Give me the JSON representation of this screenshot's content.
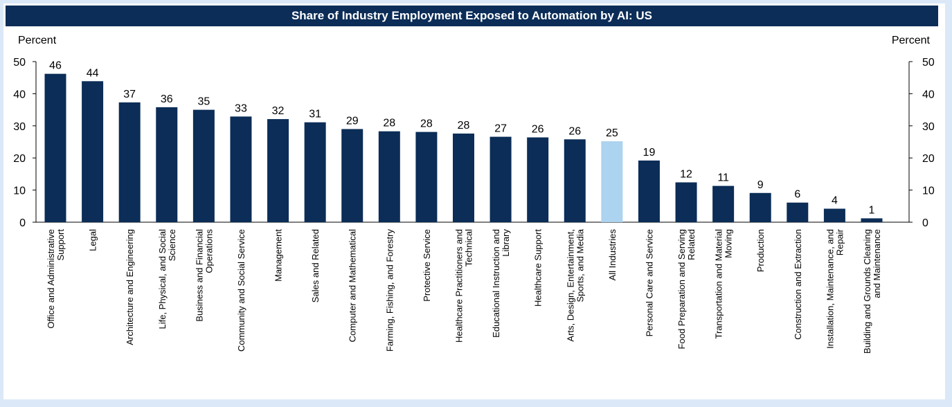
{
  "chart_data": {
    "type": "bar",
    "title": "Share of Industry Employment Exposed to Automation by AI: US",
    "ylabel_left": "Percent",
    "ylabel_right": "Percent",
    "ylim": [
      0,
      50
    ],
    "yticks": [
      0,
      10,
      20,
      30,
      40,
      50
    ],
    "categories": [
      "Office and Administrative Support",
      "Legal",
      "Architecture and Engineering",
      "Life, Physical, and Social Science",
      "Business and Financial Operations",
      "Community and Social Service",
      "Management",
      "Sales and Related",
      "Computer and Mathematical",
      "Farming, Fishing, and Forestry",
      "Protective Service",
      "Healthcare Practitioners and Technical",
      "Educational Instruction and Library",
      "Healthcare Support",
      "Arts, Design, Entertainment, Sports, and Media",
      "All Industries",
      "Personal Care and Service",
      "Food Preparation and Serving Related",
      "Transportation and Material Moving",
      "Production",
      "Construction and Extraction",
      "Installation, Maintenance, and Repair",
      "Building and Grounds Cleaning and Maintenance"
    ],
    "category_label_lines": [
      [
        "Office and Administrative",
        "Support"
      ],
      [
        "Legal"
      ],
      [
        "Architecture and Engineering"
      ],
      [
        "Life, Physical, and Social",
        "Science"
      ],
      [
        "Business and Financial",
        "Operations"
      ],
      [
        "Community and Social Service"
      ],
      [
        "Management"
      ],
      [
        "Sales and Related"
      ],
      [
        "Computer and Mathematical"
      ],
      [
        "Farming, Fishing, and Forestry"
      ],
      [
        "Protective Service"
      ],
      [
        "Healthcare Practitioners and",
        "Technical"
      ],
      [
        "Educational Instruction and",
        "Library"
      ],
      [
        "Healthcare Support"
      ],
      [
        "Arts, Design, Entertainment,",
        "Sports, and Media"
      ],
      [
        "All Industries"
      ],
      [
        "Personal Care and Service"
      ],
      [
        "Food Preparation and Serving",
        "Related"
      ],
      [
        "Transportation and Material",
        "Moving"
      ],
      [
        "Production"
      ],
      [
        "Construction and Extraction"
      ],
      [
        "Installation, Maintenance, and",
        "Repair"
      ],
      [
        "Building and Grounds Cleaning",
        "and Maintenance"
      ]
    ],
    "values": [
      46,
      44,
      37,
      36,
      35,
      33,
      32,
      31,
      29,
      28,
      28,
      28,
      27,
      26,
      26,
      25,
      19,
      12,
      11,
      9,
      6,
      4,
      1
    ],
    "plot_values": [
      46.2,
      43.9,
      37.3,
      35.8,
      35.0,
      32.9,
      32.1,
      31.1,
      29.0,
      28.3,
      28.1,
      27.6,
      26.6,
      26.4,
      25.8,
      25.2,
      19.2,
      12.4,
      11.3,
      9.1,
      6.1,
      4.2,
      1.2
    ],
    "highlight_category": "All Industries",
    "colors": {
      "bar": "#0b2d57",
      "highlight": "#acd3ef",
      "title_bg": "#0b2d57",
      "title_text": "#ffffff",
      "frame": "#dbe8f7"
    },
    "grid": false,
    "legend": "none"
  }
}
